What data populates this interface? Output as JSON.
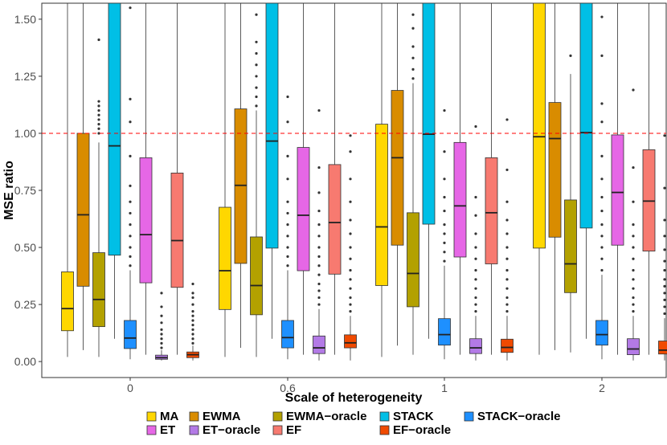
{
  "chart_data": {
    "type": "boxplot",
    "xlabel": "Scale of heterogeneity",
    "ylabel": "MSE ratio",
    "categories": [
      "0",
      "0.6",
      "1",
      "2"
    ],
    "ylim": [
      -0.07,
      1.57
    ],
    "yticks": [
      0.0,
      0.25,
      0.5,
      0.75,
      1.0,
      1.25,
      1.5
    ],
    "ytick_labels": [
      "0.00",
      "0.25",
      "0.50",
      "0.75",
      "1.00",
      "1.25",
      "1.50"
    ],
    "reference_line": {
      "y": 1.0,
      "color": "#ff0000",
      "style": "dashed"
    },
    "legend": [
      [
        "MA",
        "EWMA",
        "EWMA−oracle",
        "STACK",
        "STACK−oracle"
      ],
      [
        "ET",
        "ET−oracle",
        "EF",
        "EF−oracle"
      ]
    ],
    "series": [
      {
        "name": "MA",
        "color": "#FFD700",
        "boxes": [
          {
            "whislo": 0.02,
            "q1": 0.135,
            "med": 0.232,
            "q3": 0.393,
            "whishi": 1.6,
            "outliers": []
          },
          {
            "whislo": 0.02,
            "q1": 0.228,
            "med": 0.398,
            "q3": 0.676,
            "whishi": 1.6,
            "outliers": []
          },
          {
            "whislo": 0.02,
            "q1": 0.333,
            "med": 0.59,
            "q3": 1.04,
            "whishi": 1.6,
            "outliers": []
          },
          {
            "whislo": 0.03,
            "q1": 0.497,
            "med": 0.985,
            "q3": 1.6,
            "whishi": 1.6,
            "outliers": []
          }
        ]
      },
      {
        "name": "EWMA",
        "color": "#D98C00",
        "boxes": [
          {
            "whislo": 0.05,
            "q1": 0.33,
            "med": 0.643,
            "q3": 1.0,
            "whishi": 1.6,
            "outliers": []
          },
          {
            "whislo": 0.06,
            "q1": 0.43,
            "med": 0.772,
            "q3": 1.107,
            "whishi": 1.6,
            "outliers": []
          },
          {
            "whislo": 0.07,
            "q1": 0.51,
            "med": 0.893,
            "q3": 1.188,
            "whishi": 1.6,
            "outliers": []
          },
          {
            "whislo": 0.05,
            "q1": 0.545,
            "med": 0.977,
            "q3": 1.135,
            "whishi": 1.6,
            "outliers": []
          }
        ]
      },
      {
        "name": "EWMA−oracle",
        "color": "#B3A100",
        "boxes": [
          {
            "whislo": 0.02,
            "q1": 0.153,
            "med": 0.272,
            "q3": 0.477,
            "whishi": 0.96,
            "outliers": [
              1.0,
              1.02,
              1.04,
              1.06,
              1.08,
              1.1,
              1.12,
              1.14,
              1.41
            ]
          },
          {
            "whislo": 0.02,
            "q1": 0.205,
            "med": 0.333,
            "q3": 0.546,
            "whishi": 1.1,
            "outliers": [
              1.12,
              1.16,
              1.2,
              1.25,
              1.3,
              1.35,
              1.4,
              1.52
            ]
          },
          {
            "whislo": 0.03,
            "q1": 0.24,
            "med": 0.386,
            "q3": 0.652,
            "whishi": 1.22,
            "outliers": [
              1.24,
              1.28,
              1.33,
              1.38,
              1.46,
              1.52
            ]
          },
          {
            "whislo": 0.04,
            "q1": 0.302,
            "med": 0.428,
            "q3": 0.708,
            "whishi": 1.26,
            "outliers": [
              1.34
            ]
          }
        ]
      },
      {
        "name": "STACK",
        "color": "#00BFE6",
        "boxes": [
          {
            "whislo": 0.1,
            "q1": 0.466,
            "med": 0.945,
            "q3": 1.6,
            "whishi": 1.6,
            "outliers": []
          },
          {
            "whislo": 0.1,
            "q1": 0.497,
            "med": 0.966,
            "q3": 1.6,
            "whishi": 1.6,
            "outliers": []
          },
          {
            "whislo": 0.1,
            "q1": 0.602,
            "med": 0.996,
            "q3": 1.6,
            "whishi": 1.6,
            "outliers": []
          },
          {
            "whislo": 0.1,
            "q1": 0.585,
            "med": 1.003,
            "q3": 1.6,
            "whishi": 1.6,
            "outliers": []
          }
        ]
      },
      {
        "name": "STACK−oracle",
        "color": "#1E90FF",
        "boxes": [
          {
            "whislo": 0.01,
            "q1": 0.057,
            "med": 0.103,
            "q3": 0.18,
            "whishi": 0.4,
            "outliers": [
              0.42,
              0.46,
              0.5,
              0.55,
              0.6,
              0.65,
              0.7,
              0.77,
              0.9,
              1.05,
              1.15,
              1.55
            ]
          },
          {
            "whislo": 0.01,
            "q1": 0.06,
            "med": 0.105,
            "q3": 0.18,
            "whishi": 0.4,
            "outliers": [
              0.42,
              0.46,
              0.5,
              0.55,
              0.6,
              0.65,
              0.7,
              0.8,
              0.9,
              1.05,
              1.16
            ]
          },
          {
            "whislo": 0.01,
            "q1": 0.072,
            "med": 0.118,
            "q3": 0.188,
            "whishi": 0.42,
            "outliers": [
              0.44,
              0.48,
              0.52,
              0.56,
              0.6,
              0.66,
              0.72,
              0.8,
              0.92,
              1.1
            ]
          },
          {
            "whislo": 0.01,
            "q1": 0.072,
            "med": 0.118,
            "q3": 0.18,
            "whishi": 0.38,
            "outliers": [
              0.4,
              0.45,
              0.5,
              0.55,
              0.6,
              0.66,
              0.72,
              0.8,
              0.9,
              1.05,
              1.13,
              1.34,
              1.51
            ]
          }
        ]
      },
      {
        "name": "ET",
        "color": "#E667E6",
        "boxes": [
          {
            "whislo": 0.03,
            "q1": 0.345,
            "med": 0.556,
            "q3": 0.893,
            "whishi": 1.6,
            "outliers": []
          },
          {
            "whislo": 0.03,
            "q1": 0.398,
            "med": 0.641,
            "q3": 0.938,
            "whishi": 1.6,
            "outliers": []
          },
          {
            "whislo": 0.03,
            "q1": 0.458,
            "med": 0.682,
            "q3": 0.96,
            "whishi": 1.6,
            "outliers": []
          },
          {
            "whislo": 0.03,
            "q1": 0.51,
            "med": 0.741,
            "q3": 0.993,
            "whishi": 1.6,
            "outliers": []
          }
        ]
      },
      {
        "name": "ET−oracle",
        "color": "#B37AE6",
        "boxes": [
          {
            "whislo": 0.005,
            "q1": 0.01,
            "med": 0.017,
            "q3": 0.028,
            "whishi": 0.05,
            "outliers": [
              0.06,
              0.08,
              0.1,
              0.12,
              0.14,
              0.17,
              0.2,
              0.24,
              0.3
            ]
          },
          {
            "whislo": 0.005,
            "q1": 0.035,
            "med": 0.06,
            "q3": 0.112,
            "whishi": 0.23,
            "outliers": [
              0.25,
              0.28,
              0.31,
              0.34,
              0.38,
              0.42,
              0.46,
              0.5,
              0.55,
              0.6,
              0.66,
              0.74,
              0.85,
              1.1
            ]
          },
          {
            "whislo": 0.005,
            "q1": 0.035,
            "med": 0.06,
            "q3": 0.1,
            "whishi": 0.2,
            "outliers": [
              0.22,
              0.25,
              0.28,
              0.32,
              0.36,
              0.4,
              0.45,
              0.5,
              0.56,
              0.64,
              0.72,
              1.03
            ]
          },
          {
            "whislo": 0.005,
            "q1": 0.03,
            "med": 0.055,
            "q3": 0.1,
            "whishi": 0.2,
            "outliers": [
              0.22,
              0.25,
              0.28,
              0.32,
              0.36,
              0.4,
              0.45,
              0.5,
              0.55,
              0.6,
              0.7,
              0.85,
              1.19
            ]
          }
        ]
      },
      {
        "name": "EF",
        "color": "#F77A70",
        "boxes": [
          {
            "whislo": 0.03,
            "q1": 0.325,
            "med": 0.53,
            "q3": 0.826,
            "whishi": 1.6,
            "outliers": []
          },
          {
            "whislo": 0.03,
            "q1": 0.383,
            "med": 0.609,
            "q3": 0.863,
            "whishi": 1.6,
            "outliers": []
          },
          {
            "whislo": 0.03,
            "q1": 0.428,
            "med": 0.652,
            "q3": 0.893,
            "whishi": 1.6,
            "outliers": []
          },
          {
            "whislo": 0.03,
            "q1": 0.484,
            "med": 0.703,
            "q3": 0.928,
            "whishi": 1.6,
            "outliers": []
          }
        ]
      },
      {
        "name": "EF−oracle",
        "color": "#F04A00",
        "boxes": [
          {
            "whislo": 0.005,
            "q1": 0.017,
            "med": 0.03,
            "q3": 0.042,
            "whishi": 0.07,
            "outliers": [
              0.08,
              0.1,
              0.12,
              0.14,
              0.16,
              0.18,
              0.2,
              0.22,
              0.25,
              0.28,
              0.3,
              0.34
            ]
          },
          {
            "whislo": 0.005,
            "q1": 0.06,
            "med": 0.082,
            "q3": 0.117,
            "whishi": 0.2,
            "outliers": [
              0.22,
              0.25,
              0.28,
              0.32,
              0.36,
              0.4,
              0.45,
              0.5,
              0.56,
              0.62,
              0.7,
              0.8,
              0.92,
              0.99
            ]
          },
          {
            "whislo": 0.005,
            "q1": 0.04,
            "med": 0.062,
            "q3": 0.098,
            "whishi": 0.2,
            "outliers": [
              0.22,
              0.25,
              0.28,
              0.32,
              0.36,
              0.4,
              0.45,
              0.5,
              0.56,
              0.62,
              0.7,
              0.84,
              1.06
            ]
          },
          {
            "whislo": 0.005,
            "q1": 0.033,
            "med": 0.05,
            "q3": 0.09,
            "whishi": 0.19,
            "outliers": [
              0.21,
              0.24,
              0.27,
              0.3,
              0.33,
              0.36,
              0.4,
              0.44,
              0.49,
              0.55,
              0.62,
              0.76,
              0.99
            ]
          }
        ]
      }
    ]
  }
}
